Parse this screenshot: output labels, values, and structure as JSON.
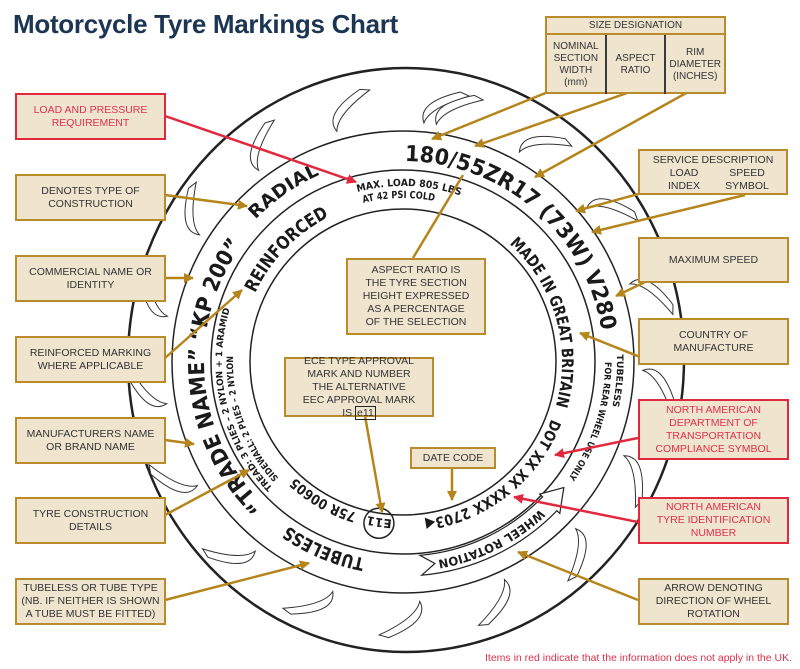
{
  "title": "Motorcycle Tyre Markings Chart",
  "colors": {
    "title": "#1b3553",
    "box_fill": "#efe5cf",
    "box_border": "#b98b2a",
    "leader": "#b5851b",
    "red": "#e2283f"
  },
  "size_designation": {
    "title": "SIZE DESIGNATION",
    "columns": [
      "NOMINAL SECTION WIDTH (mm)",
      "ASPECT RATIO",
      "RIM DIAMETER (INCHES)"
    ]
  },
  "service_description": {
    "title": "SERVICE DESCRIPTION",
    "load": "LOAD INDEX",
    "speed": "SPEED SYMBOL"
  },
  "left_boxes": [
    {
      "text": "LOAD AND PRESSURE REQUIREMENT",
      "red": true
    },
    {
      "text": "DENOTES TYPE OF CONSTRUCTION",
      "red": false
    },
    {
      "text": "COMMERCIAL NAME OR IDENTITY",
      "red": false
    },
    {
      "text": "REINFORCED MARKING WHERE APPLICABLE",
      "red": false
    },
    {
      "text": "MANUFACTURERS NAME OR BRAND NAME",
      "red": false
    },
    {
      "text": "TYRE CONSTRUCTION DETAILS",
      "red": false
    },
    {
      "text": "TUBELESS OR TUBE TYPE (NB. IF NEITHER IS SHOWN A TUBE MUST BE FITTED)",
      "red": false
    }
  ],
  "right_boxes": [
    {
      "text": "MAXIMUM SPEED",
      "red": false
    },
    {
      "text": "COUNTRY OF MANUFACTURE",
      "red": false
    },
    {
      "text": "NORTH AMERICAN DEPARTMENT OF TRANSPORTATION COMPLIANCE SYMBOL",
      "red": true
    },
    {
      "text": "NORTH AMERICAN TYRE IDENTIFICATION NUMBER",
      "red": true
    },
    {
      "text": "ARROW DENOTING DIRECTION OF WHEEL ROTATION",
      "red": false
    }
  ],
  "center_boxes": {
    "aspect_ratio": "ASPECT RATIO IS THE TYRE SECTION HEIGHT EXPRESSED AS A PERCENTAGE OF THE SELECTION",
    "ece": "ECE TYPE APPROVAL MARK AND NUMBER THE ALTERNATIVE EEC APPROVAL MARK IS",
    "ece_mark": "e11",
    "date_code": "DATE CODE"
  },
  "tyre_markings": {
    "size": "180/55ZR17 (73W) V280",
    "radial": "RADIAL",
    "trade_name": "“TRADE NAME” “KP 200”",
    "tubeless": "TUBELESS",
    "wheel_rotation": "WHEEL ROTATION",
    "rear_line1": "TUBELESS",
    "rear_line2": "FOR REAR WHEEL USE ONLY",
    "max_load": "MAX. LOAD 805 LBS",
    "pressure": "AT 42 PSI COLD",
    "reinforced": "REINFORCED",
    "country": "MADE IN GREAT BRITAIN",
    "dot": "DOT XX XX XXXX 2703◀",
    "approval_mark": "E11",
    "approval_number": "75R 00605",
    "tread_plies": "TREAD: 3 PLIES – 2 NYLON + 1 ARAMID",
    "sidewall_plies": "SIDEWALL: 2 PLIES – 2 NYLON"
  },
  "footnote": "Items in red indicate that the information does not apply in the UK."
}
